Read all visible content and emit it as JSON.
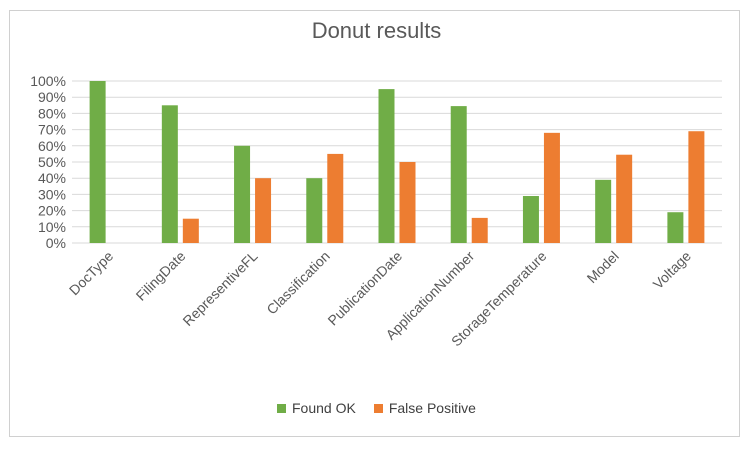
{
  "chart_data": {
    "type": "bar",
    "title": "Donut results",
    "categories": [
      "DocType",
      "FilingDate",
      "RepresentiveFL",
      "Classification",
      "PublicationDate",
      "ApplicationNumber",
      "StorageTemperature",
      "Model",
      "Voltage"
    ],
    "series": [
      {
        "name": "Found OK",
        "color": "#70ad47",
        "values": [
          1.0,
          0.85,
          0.6,
          0.4,
          0.95,
          0.845,
          0.29,
          0.39,
          0.19
        ]
      },
      {
        "name": "False Positive",
        "color": "#ed7d31",
        "values": [
          0,
          0.15,
          0.4,
          0.55,
          0.5,
          0.155,
          0.68,
          0.545,
          0.69
        ]
      }
    ],
    "ylim": [
      0,
      1.0
    ],
    "yticks": [
      "0%",
      "10%",
      "20%",
      "30%",
      "40%",
      "50%",
      "60%",
      "70%",
      "80%",
      "90%",
      "100%"
    ],
    "grid": true,
    "legend_position": "bottom"
  }
}
